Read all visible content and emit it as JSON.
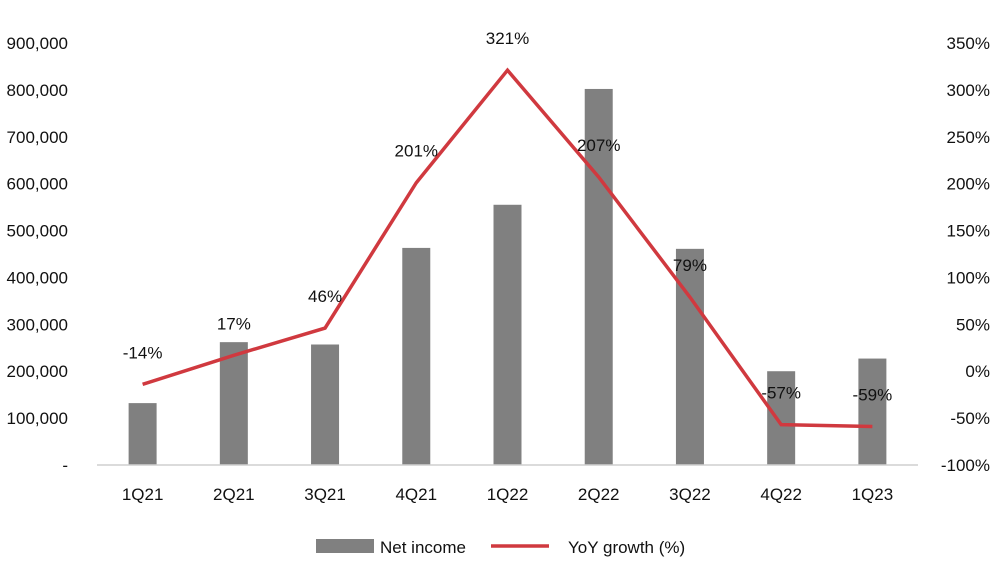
{
  "chart_data": {
    "type": "bar",
    "categories": [
      "1Q21",
      "2Q21",
      "3Q21",
      "4Q21",
      "1Q22",
      "2Q22",
      "3Q22",
      "4Q22",
      "1Q23"
    ],
    "series": [
      {
        "name": "Net income",
        "type": "bar",
        "axis": "left",
        "color": "#808080",
        "values": [
          132000,
          262000,
          257000,
          463000,
          555000,
          802000,
          461000,
          200000,
          227000
        ]
      },
      {
        "name": "YoY growth (%)",
        "type": "line",
        "axis": "right",
        "color": "#d0393f",
        "values": [
          -14,
          17,
          46,
          201,
          321,
          207,
          79,
          -57,
          -59
        ],
        "labels": [
          "-14%",
          "17%",
          "46%",
          "201%",
          "321%",
          "207%",
          "79%",
          "-57%",
          "-59%"
        ]
      }
    ],
    "y_left": {
      "ylim": [
        0,
        900000
      ],
      "ticks": [
        0,
        100000,
        200000,
        300000,
        400000,
        500000,
        600000,
        700000,
        800000,
        900000
      ],
      "tick_labels": [
        "-",
        "100,000",
        "200,000",
        "300,000",
        "400,000",
        "500,000",
        "600,000",
        "700,000",
        "800,000",
        "900,000"
      ]
    },
    "y_right": {
      "ylim": [
        -100,
        350
      ],
      "ticks": [
        -100,
        -50,
        0,
        50,
        100,
        150,
        200,
        250,
        300,
        350
      ],
      "tick_labels": [
        "-100%",
        "-50%",
        "0%",
        "50%",
        "100%",
        "150%",
        "200%",
        "250%",
        "300%",
        "350%"
      ]
    },
    "grid": false,
    "legend_position": "bottom-center"
  }
}
